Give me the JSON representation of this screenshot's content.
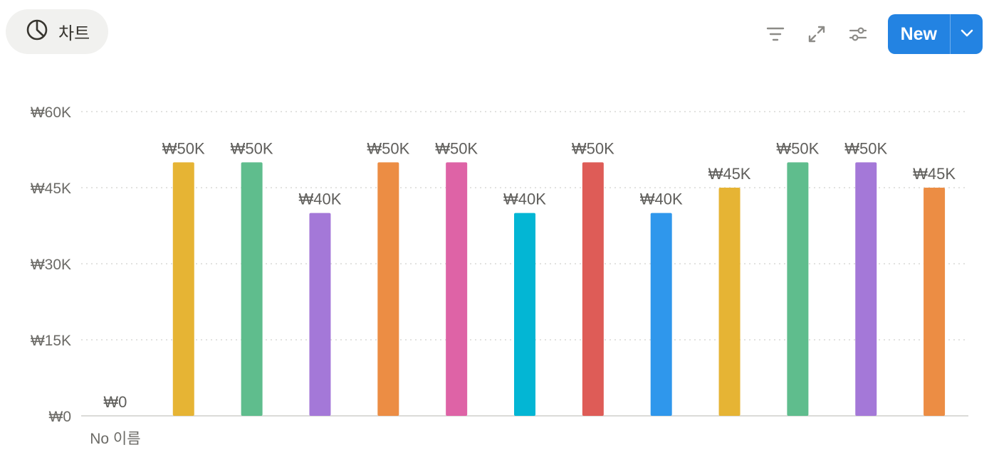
{
  "view_tab": {
    "label": "차트",
    "icon": "pie-chart-icon"
  },
  "toolbar": {
    "icons": [
      "filter-icon",
      "expand-icon",
      "settings-sliders-icon"
    ],
    "new_label": "New",
    "accent": "#2383e2"
  },
  "chart_data": {
    "type": "bar",
    "title": "",
    "xlabel": "",
    "ylabel": "",
    "ylim": [
      0,
      60000
    ],
    "yticks": [
      0,
      15000,
      30000,
      45000,
      60000
    ],
    "ytick_labels": [
      "₩0",
      "₩15K",
      "₩30K",
      "₩45K",
      "₩60K"
    ],
    "grid": true,
    "categories": [
      "No 이름",
      "",
      "",
      "",
      "",
      "",
      "",
      "",
      "",
      "",
      "",
      "",
      ""
    ],
    "values": [
      0,
      50000,
      50000,
      40000,
      50000,
      50000,
      40000,
      50000,
      40000,
      45000,
      50000,
      50000,
      45000
    ],
    "data_labels": [
      "₩0",
      "₩50K",
      "₩50K",
      "₩40K",
      "₩50K",
      "₩50K",
      "₩40K",
      "₩50K",
      "₩40K",
      "₩45K",
      "₩50K",
      "₩50K",
      "₩45K"
    ],
    "colors": [
      "#e3e2e0",
      "#e6b434",
      "#5fbd8d",
      "#a478d8",
      "#ec8d44",
      "#de63a6",
      "#03b6d4",
      "#de5c57",
      "#2f97ec",
      "#e6b434",
      "#5fbd8d",
      "#a478d8",
      "#ec8d44"
    ]
  }
}
